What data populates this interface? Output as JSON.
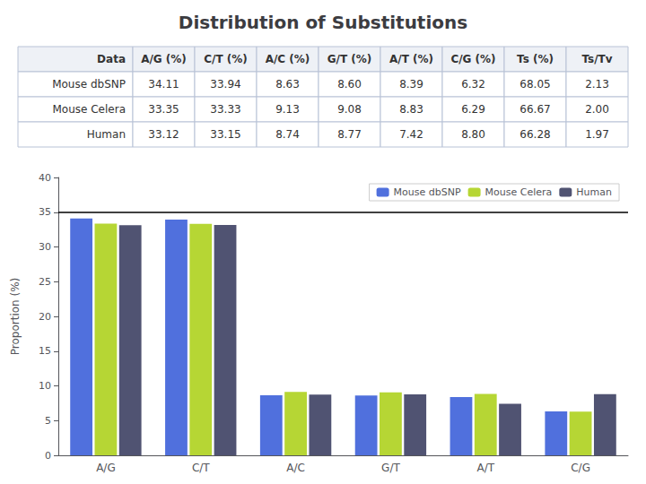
{
  "chart_data": [
    {
      "type": "table",
      "title": "Distribution of Substitutions",
      "headers": [
        "Data",
        "A/G (%)",
        "C/T (%)",
        "A/C (%)",
        "G/T (%)",
        "A/T (%)",
        "C/G (%)",
        "Ts (%)",
        "Ts/Tv"
      ],
      "rows": [
        [
          "Mouse dbSNP",
          "34.11",
          "33.94",
          "8.63",
          "8.60",
          "8.39",
          "6.32",
          "68.05",
          "2.13"
        ],
        [
          "Mouse Celera",
          "33.35",
          "33.33",
          "9.13",
          "9.08",
          "8.83",
          "6.29",
          "66.67",
          "2.00"
        ],
        [
          "Human",
          "33.12",
          "33.15",
          "8.74",
          "8.77",
          "7.42",
          "8.80",
          "66.28",
          "1.97"
        ]
      ]
    },
    {
      "type": "bar",
      "categories": [
        "A/G",
        "C/T",
        "A/C",
        "G/T",
        "A/T",
        "C/G"
      ],
      "series": [
        {
          "name": "Mouse dbSNP",
          "values": [
            34.11,
            33.94,
            8.63,
            8.6,
            8.39,
            6.32
          ]
        },
        {
          "name": "Mouse Celera",
          "values": [
            33.35,
            33.33,
            9.13,
            9.08,
            8.83,
            6.29
          ]
        },
        {
          "name": "Human",
          "values": [
            33.12,
            33.15,
            8.74,
            8.77,
            7.42,
            8.8
          ]
        }
      ],
      "ylabel": "Proportion (%)",
      "ylim": [
        0,
        40
      ],
      "yticks": [
        0,
        5,
        10,
        15,
        20,
        25,
        30,
        35,
        40
      ],
      "grid": false,
      "legend": "upper right",
      "hline": 35
    }
  ]
}
